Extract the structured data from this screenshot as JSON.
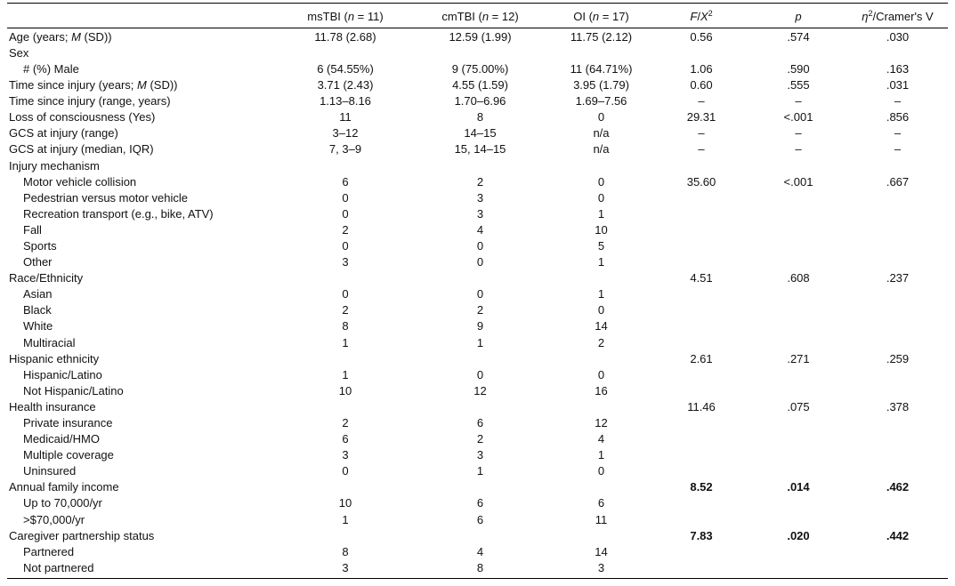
{
  "header": {
    "label": "",
    "ms_group": "msTBI",
    "ms_n": "n",
    "ms_count": " = 11)",
    "cm_group": "cmTBI",
    "cm_n": "n",
    "cm_count": " = 12)",
    "oi_group": "OI",
    "oi_n": "n",
    "oi_count": " = 17)",
    "f_stat": "F",
    "x_stat": "X",
    "x_sup": "2",
    "p": "p",
    "eta": "η",
    "eta_sup": "2",
    "eta_rest": "/Cramer's V"
  },
  "rows": [
    {
      "label": "Age (years; M (SD))",
      "ms": "11.78 (2.68)",
      "cm": "12.59 (1.99)",
      "oi": "11.75 (2.12)",
      "f": "0.56",
      "p": ".574",
      "eta": ".030",
      "indent": false,
      "bold": false
    },
    {
      "label": "Sex",
      "ms": "",
      "cm": "",
      "oi": "",
      "f": "",
      "p": "",
      "eta": "",
      "indent": false,
      "bold": false
    },
    {
      "label": "# (%) Male",
      "ms": "6 (54.55%)",
      "cm": "9 (75.00%)",
      "oi": "11 (64.71%)",
      "f": "1.06",
      "p": ".590",
      "eta": ".163",
      "indent": true,
      "bold": false
    },
    {
      "label": "Time since injury (years; M (SD))",
      "ms": "3.71 (2.43)",
      "cm": "4.55 (1.59)",
      "oi": "3.95 (1.79)",
      "f": "0.60",
      "p": ".555",
      "eta": ".031",
      "indent": false,
      "bold": false
    },
    {
      "label": "Time since injury (range, years)",
      "ms": "1.13–8.16",
      "cm": "1.70–6.96",
      "oi": "1.69–7.56",
      "f": "–",
      "p": "–",
      "eta": "–",
      "indent": false,
      "bold": false
    },
    {
      "label": "Loss of consciousness (Yes)",
      "ms": "11",
      "cm": "8",
      "oi": "0",
      "f": "29.31",
      "p": "<.001",
      "eta": ".856",
      "indent": false,
      "bold": false
    },
    {
      "label": "GCS at injury (range)",
      "ms": "3–12",
      "cm": "14–15",
      "oi": "n/a",
      "f": "–",
      "p": "–",
      "eta": "–",
      "indent": false,
      "bold": false
    },
    {
      "label": "GCS at injury (median, IQR)",
      "ms": "7, 3–9",
      "cm": "15, 14–15",
      "oi": "n/a",
      "f": "–",
      "p": "–",
      "eta": "–",
      "indent": false,
      "bold": false
    },
    {
      "label": "Injury mechanism",
      "ms": "",
      "cm": "",
      "oi": "",
      "f": "",
      "p": "",
      "eta": "",
      "indent": false,
      "bold": false
    },
    {
      "label": "Motor vehicle collision",
      "ms": "6",
      "cm": "2",
      "oi": "0",
      "f": "35.60",
      "p": "<.001",
      "eta": ".667",
      "indent": true,
      "bold": false
    },
    {
      "label": "Pedestrian versus motor vehicle",
      "ms": "0",
      "cm": "3",
      "oi": "0",
      "f": "",
      "p": "",
      "eta": "",
      "indent": true,
      "bold": false
    },
    {
      "label": "Recreation transport (e.g., bike, ATV)",
      "ms": "0",
      "cm": "3",
      "oi": "1",
      "f": "",
      "p": "",
      "eta": "",
      "indent": true,
      "bold": false
    },
    {
      "label": "Fall",
      "ms": "2",
      "cm": "4",
      "oi": "10",
      "f": "",
      "p": "",
      "eta": "",
      "indent": true,
      "bold": false
    },
    {
      "label": "Sports",
      "ms": "0",
      "cm": "0",
      "oi": "5",
      "f": "",
      "p": "",
      "eta": "",
      "indent": true,
      "bold": false
    },
    {
      "label": "Other",
      "ms": "3",
      "cm": "0",
      "oi": "1",
      "f": "",
      "p": "",
      "eta": "",
      "indent": true,
      "bold": false
    },
    {
      "label": "Race/Ethnicity",
      "ms": "",
      "cm": "",
      "oi": "",
      "f": "4.51",
      "p": ".608",
      "eta": ".237",
      "indent": false,
      "bold": false
    },
    {
      "label": "Asian",
      "ms": "0",
      "cm": "0",
      "oi": "1",
      "f": "",
      "p": "",
      "eta": "",
      "indent": true,
      "bold": false
    },
    {
      "label": "Black",
      "ms": "2",
      "cm": "2",
      "oi": "0",
      "f": "",
      "p": "",
      "eta": "",
      "indent": true,
      "bold": false
    },
    {
      "label": "White",
      "ms": "8",
      "cm": "9",
      "oi": "14",
      "f": "",
      "p": "",
      "eta": "",
      "indent": true,
      "bold": false
    },
    {
      "label": "Multiracial",
      "ms": "1",
      "cm": "1",
      "oi": "2",
      "f": "",
      "p": "",
      "eta": "",
      "indent": true,
      "bold": false
    },
    {
      "label": "Hispanic ethnicity",
      "ms": "",
      "cm": "",
      "oi": "",
      "f": "2.61",
      "p": ".271",
      "eta": ".259",
      "indent": false,
      "bold": false
    },
    {
      "label": "Hispanic/Latino",
      "ms": "1",
      "cm": "0",
      "oi": "0",
      "f": "",
      "p": "",
      "eta": "",
      "indent": true,
      "bold": false
    },
    {
      "label": "Not Hispanic/Latino",
      "ms": "10",
      "cm": "12",
      "oi": "16",
      "f": "",
      "p": "",
      "eta": "",
      "indent": true,
      "bold": false
    },
    {
      "label": "Health insurance",
      "ms": "",
      "cm": "",
      "oi": "",
      "f": "11.46",
      "p": ".075",
      "eta": ".378",
      "indent": false,
      "bold": false
    },
    {
      "label": "Private insurance",
      "ms": "2",
      "cm": "6",
      "oi": "12",
      "f": "",
      "p": "",
      "eta": "",
      "indent": true,
      "bold": false
    },
    {
      "label": "Medicaid/HMO",
      "ms": "6",
      "cm": "2",
      "oi": "4",
      "f": "",
      "p": "",
      "eta": "",
      "indent": true,
      "bold": false
    },
    {
      "label": "Multiple coverage",
      "ms": "3",
      "cm": "3",
      "oi": "1",
      "f": "",
      "p": "",
      "eta": "",
      "indent": true,
      "bold": false
    },
    {
      "label": "Uninsured",
      "ms": "0",
      "cm": "1",
      "oi": "0",
      "f": "",
      "p": "",
      "eta": "",
      "indent": true,
      "bold": false
    },
    {
      "label": "Annual family income",
      "ms": "",
      "cm": "",
      "oi": "",
      "f": "8.52",
      "p": ".014",
      "eta": ".462",
      "indent": false,
      "bold": true
    },
    {
      "label": "Up to 70,000/yr",
      "ms": "10",
      "cm": "6",
      "oi": "6",
      "f": "",
      "p": "",
      "eta": "",
      "indent": true,
      "bold": false
    },
    {
      "label": ">$70,000/yr",
      "ms": "1",
      "cm": "6",
      "oi": "11",
      "f": "",
      "p": "",
      "eta": "",
      "indent": true,
      "bold": false
    },
    {
      "label": "Caregiver partnership status",
      "ms": "",
      "cm": "",
      "oi": "",
      "f": "7.83",
      "p": ".020",
      "eta": ".442",
      "indent": false,
      "bold": true
    },
    {
      "label": "Partnered",
      "ms": "8",
      "cm": "4",
      "oi": "14",
      "f": "",
      "p": "",
      "eta": "",
      "indent": true,
      "bold": false
    },
    {
      "label": "Not partnered",
      "ms": "3",
      "cm": "8",
      "oi": "3",
      "f": "",
      "p": "",
      "eta": "",
      "indent": true,
      "bold": false
    }
  ]
}
